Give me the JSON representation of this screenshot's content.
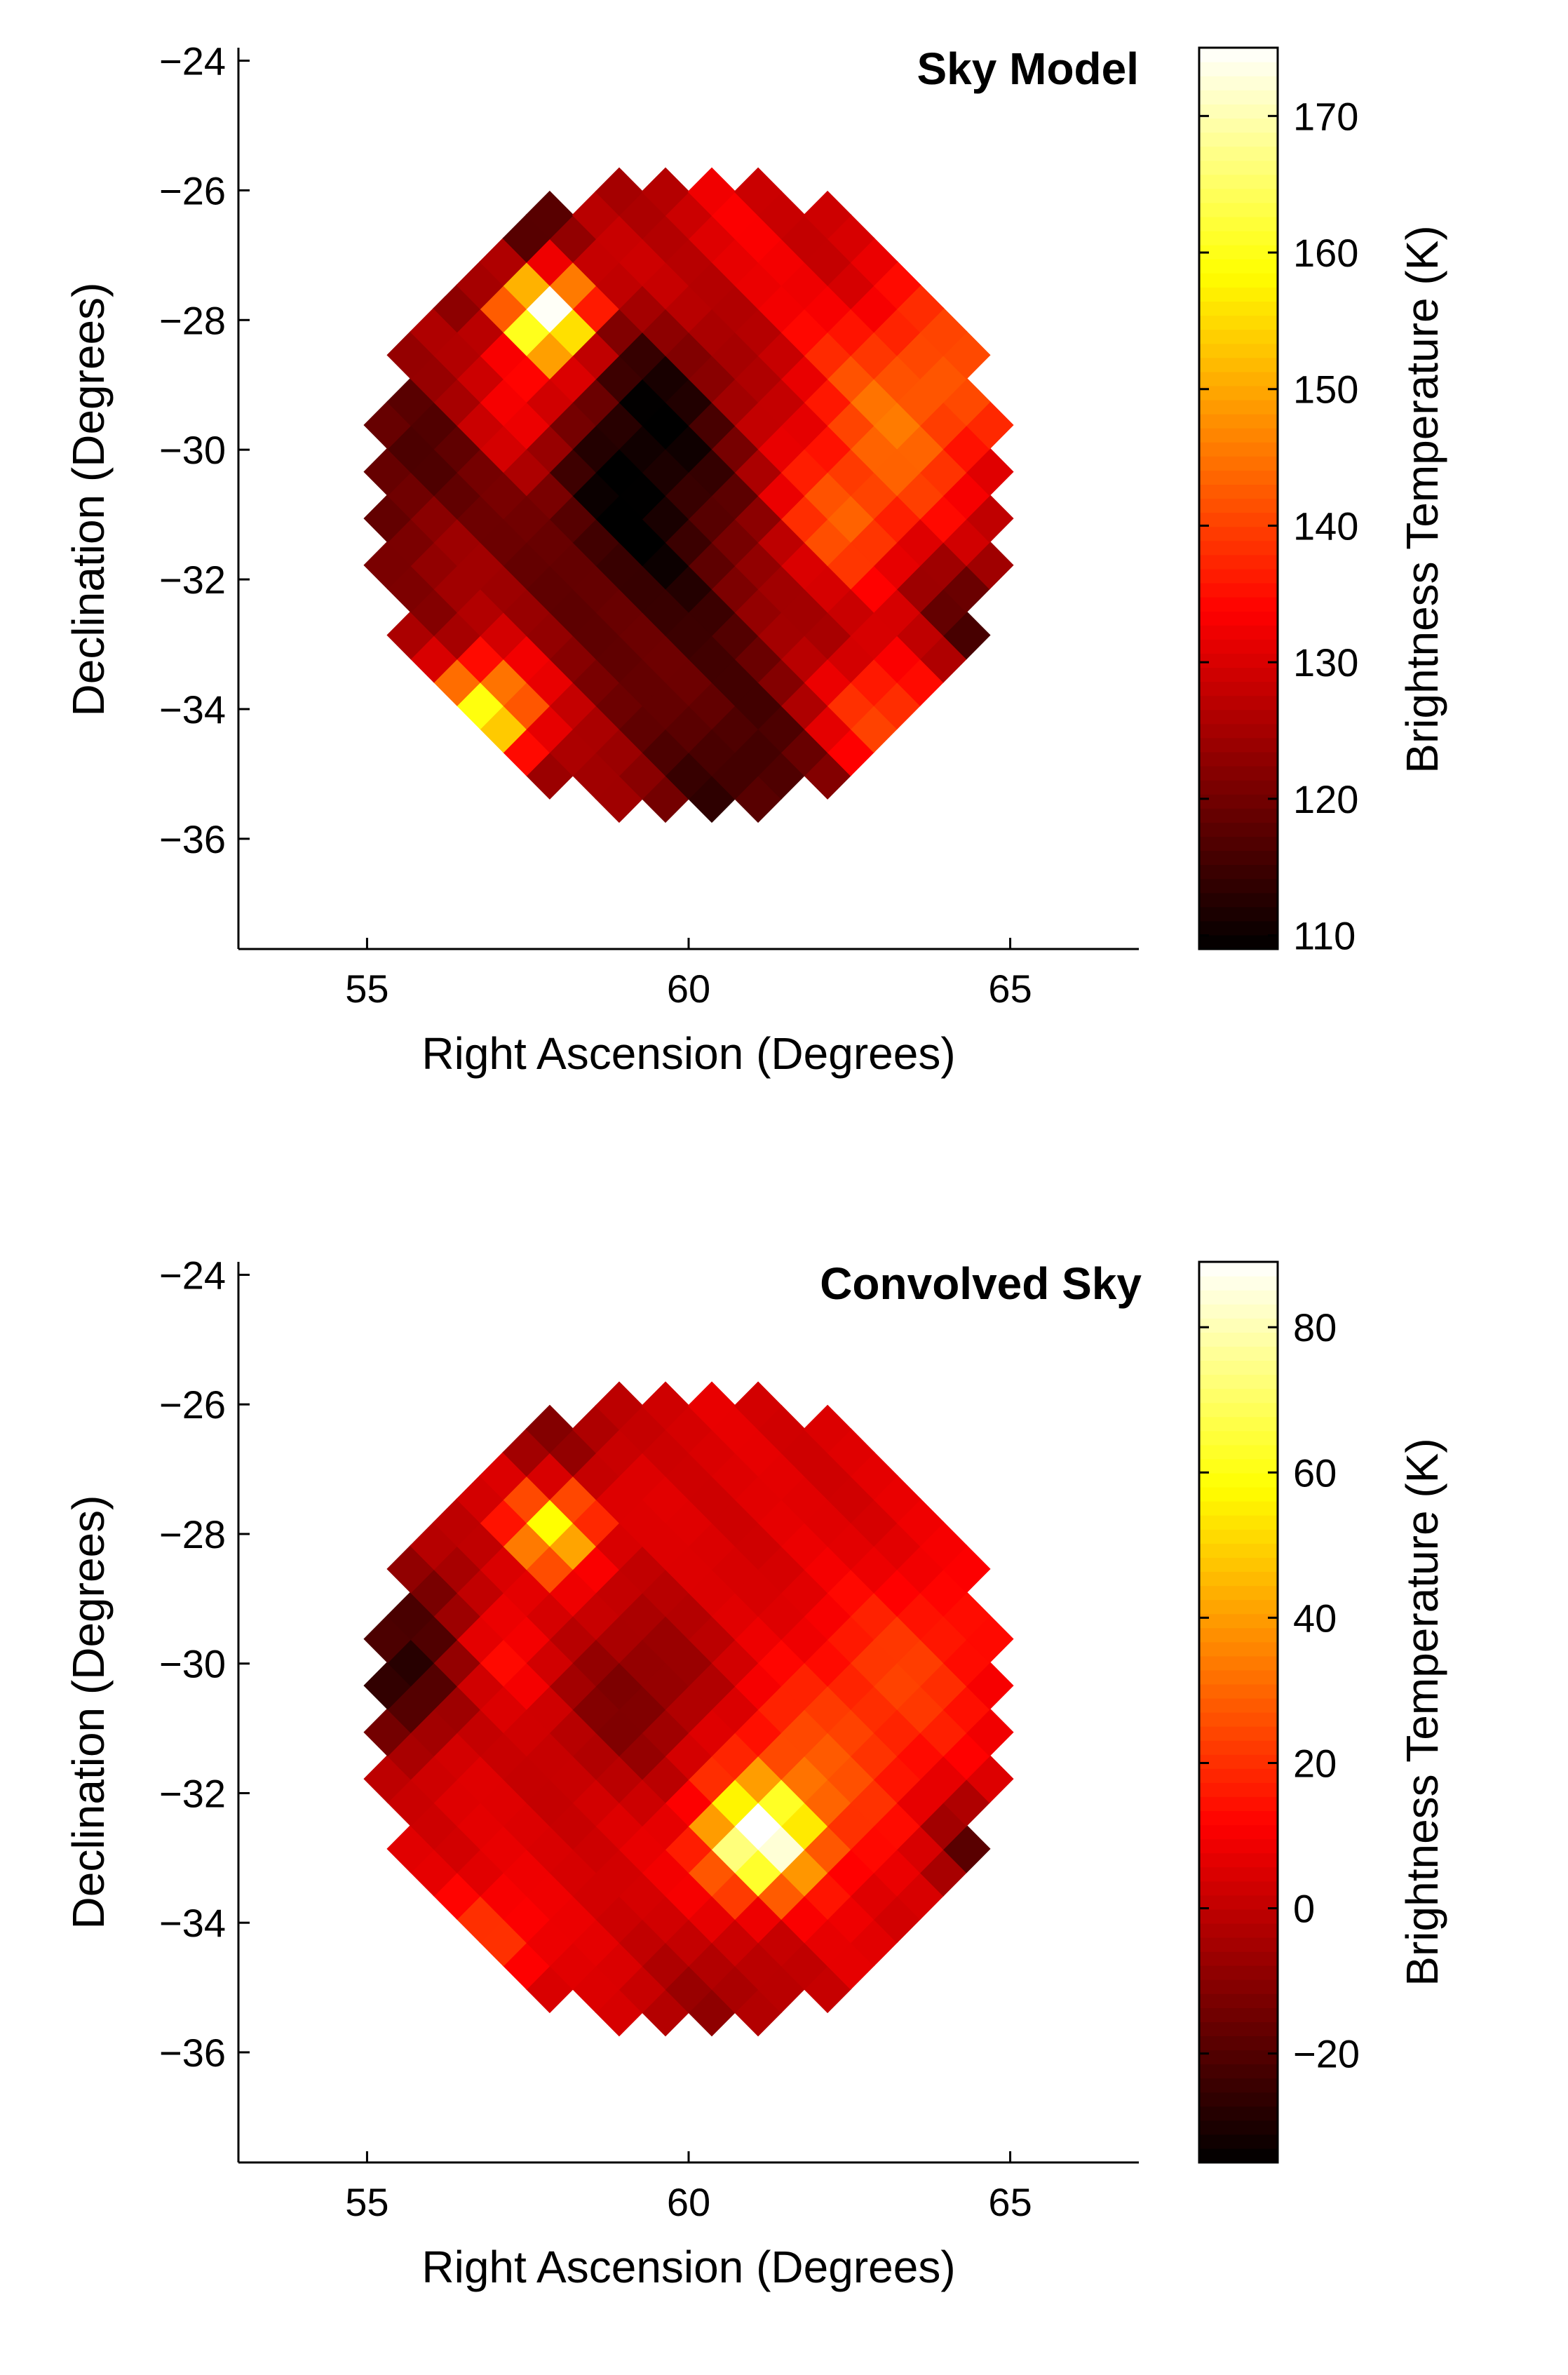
{
  "chart_data": [
    {
      "type": "heatmap",
      "title": "Sky Model",
      "xlabel": "Right Ascension (Degrees)",
      "ylabel": "Declination (Degrees)",
      "xlim": [
        53,
        67
      ],
      "ylim": [
        -37.7,
        -23.8
      ],
      "xticks": [
        55,
        60,
        65
      ],
      "xtick_labels": [
        "55",
        "60",
        "65"
      ],
      "yticks": [
        -24,
        -26,
        -28,
        -30,
        -32,
        -34,
        -36
      ],
      "ytick_labels": [
        "−24",
        "−26",
        "−28",
        "−30",
        "−32",
        "−34",
        "−36"
      ],
      "field_center": [
        60,
        -30.7
      ],
      "field_radius_deg": 5.0,
      "colorbar": {
        "label": "Brightness Temperature (K)",
        "range": [
          109,
          175
        ],
        "ticks": [
          110,
          120,
          130,
          140,
          150,
          160,
          170
        ],
        "tick_labels": [
          "110",
          "120",
          "130",
          "140",
          "150",
          "160",
          "170"
        ],
        "colormap": "hot"
      },
      "background_level": 124,
      "features": [
        {
          "kind": "hot",
          "ra": 57.8,
          "dec": -27.9,
          "amplitude": 50,
          "width": 0.5
        },
        {
          "kind": "hot",
          "ra": 57.5,
          "dec": -29.4,
          "amplitude": 12,
          "width": 0.6
        },
        {
          "kind": "hot",
          "ra": 56.8,
          "dec": -34.1,
          "amplitude": 38,
          "width": 0.6
        },
        {
          "kind": "hot",
          "ra": 63.5,
          "dec": -29.2,
          "amplitude": 20,
          "width": 1.3
        },
        {
          "kind": "hot",
          "ra": 62.4,
          "dec": -31.2,
          "amplitude": 14,
          "width": 0.8
        },
        {
          "kind": "hot",
          "ra": 63.0,
          "dec": -34.0,
          "amplitude": 18,
          "width": 0.7
        },
        {
          "kind": "hot",
          "ra": 60.8,
          "dec": -26.6,
          "amplitude": 7,
          "width": 1.2
        },
        {
          "kind": "cold",
          "ra": 59.2,
          "dec": -30.8,
          "amplitude": -13,
          "width": 1.1
        },
        {
          "kind": "cold",
          "ra": 59.4,
          "dec": -29.2,
          "amplitude": -10,
          "width": 0.8
        },
        {
          "kind": "cold",
          "ra": 55.6,
          "dec": -30.2,
          "amplitude": -8,
          "width": 0.8
        },
        {
          "kind": "cold",
          "ra": 60.8,
          "dec": -35.0,
          "amplitude": -10,
          "width": 0.9
        },
        {
          "kind": "cold",
          "ra": 57.3,
          "dec": -26.6,
          "amplitude": -9,
          "width": 0.6
        },
        {
          "kind": "cold",
          "ra": 64.6,
          "dec": -32.6,
          "amplitude": -8,
          "width": 0.7
        },
        {
          "kind": "cold",
          "ra": 60.0,
          "dec": -32.8,
          "amplitude": -6,
          "width": 1.0
        }
      ]
    },
    {
      "type": "heatmap",
      "title": "Convolved Sky",
      "xlabel": "Right Ascension (Degrees)",
      "ylabel": "Declination (Degrees)",
      "xlim": [
        53,
        67
      ],
      "ylim": [
        -37.7,
        -23.8
      ],
      "xticks": [
        55,
        60,
        65
      ],
      "xtick_labels": [
        "55",
        "60",
        "65"
      ],
      "yticks": [
        -24,
        -26,
        -28,
        -30,
        -32,
        -34,
        -36
      ],
      "ytick_labels": [
        "−24",
        "−26",
        "−28",
        "−30",
        "−32",
        "−34",
        "−36"
      ],
      "field_center": [
        60,
        -30.7
      ],
      "field_radius_deg": 5.0,
      "colorbar": {
        "label": "Brightness Temperature (K)",
        "range": [
          -35,
          89
        ],
        "ticks": [
          -20,
          0,
          20,
          40,
          60,
          80
        ],
        "tick_labels": [
          "−20",
          "0",
          "20",
          "40",
          "60",
          "80"
        ],
        "colormap": "hot"
      },
      "background_level": 5,
      "features": [
        {
          "kind": "hot",
          "ra": 61.1,
          "dec": -32.7,
          "amplitude": 82,
          "width": 0.55
        },
        {
          "kind": "hot",
          "ra": 61.8,
          "dec": -31.8,
          "amplitude": 20,
          "width": 1.1
        },
        {
          "kind": "hot",
          "ra": 57.9,
          "dec": -27.9,
          "amplitude": 55,
          "width": 0.45
        },
        {
          "kind": "hot",
          "ra": 57.0,
          "dec": -29.8,
          "amplitude": 12,
          "width": 0.7
        },
        {
          "kind": "hot",
          "ra": 56.7,
          "dec": -34.4,
          "amplitude": 22,
          "width": 0.6
        },
        {
          "kind": "hot",
          "ra": 63.5,
          "dec": -30.0,
          "amplitude": 15,
          "width": 1.0
        },
        {
          "kind": "cold",
          "ra": 55.5,
          "dec": -30.3,
          "amplitude": -33,
          "width": 0.7
        },
        {
          "kind": "cold",
          "ra": 56.0,
          "dec": -29.0,
          "amplitude": -18,
          "width": 0.7
        },
        {
          "kind": "cold",
          "ra": 59.2,
          "dec": -30.5,
          "amplitude": -18,
          "width": 1.0
        },
        {
          "kind": "cold",
          "ra": 64.6,
          "dec": -32.9,
          "amplitude": -25,
          "width": 0.6
        },
        {
          "kind": "cold",
          "ra": 58.0,
          "dec": -26.5,
          "amplitude": -15,
          "width": 0.7
        },
        {
          "kind": "cold",
          "ra": 60.5,
          "dec": -35.3,
          "amplitude": -12,
          "width": 0.9
        }
      ]
    }
  ]
}
